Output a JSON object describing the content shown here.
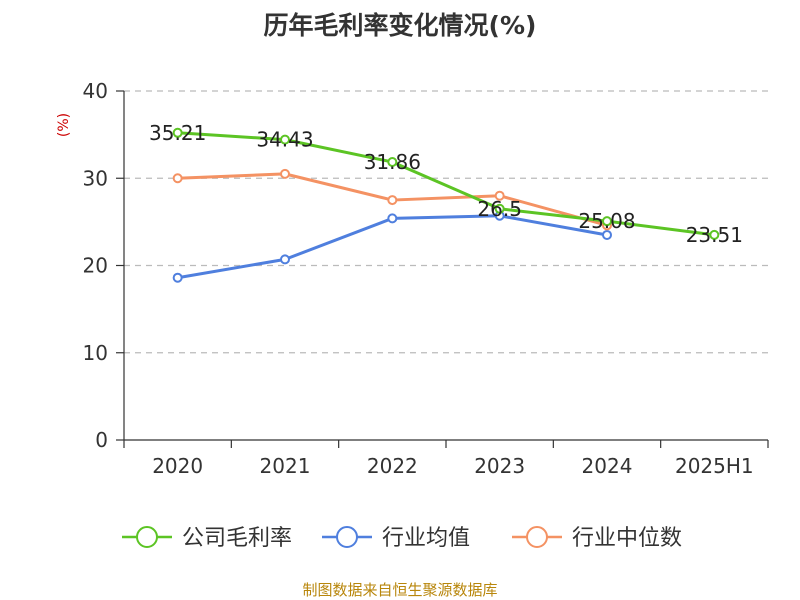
{
  "chart_data": {
    "type": "line",
    "title": "历年毛利率变化情况(%)",
    "ylabel": "(%)",
    "xlabel": "",
    "categories": [
      "2020",
      "2021",
      "2022",
      "2023",
      "2024",
      "2025H1"
    ],
    "ylim": [
      0,
      40
    ],
    "yticks": [
      0,
      10,
      20,
      30,
      40
    ],
    "grid": true,
    "legend_position": "bottom",
    "series": [
      {
        "name": "公司毛利率",
        "color": "#5cc424",
        "values": [
          35.21,
          34.43,
          31.86,
          26.5,
          25.08,
          23.51
        ],
        "labels": [
          "35.21",
          "34.43",
          "31.86",
          "26.5",
          "25.08",
          "23.51"
        ]
      },
      {
        "name": "行业均值",
        "color": "#4f7fde",
        "values": [
          18.6,
          20.7,
          25.4,
          25.7,
          23.5,
          null
        ]
      },
      {
        "name": "行业中位数",
        "color": "#f49263",
        "values": [
          30.0,
          30.5,
          27.5,
          28.0,
          24.6,
          null
        ]
      }
    ]
  },
  "footer": "制图数据来自恒生聚源数据库",
  "colors": {
    "unit_label": "#cc0000",
    "footer": "#b8860b",
    "axis": "#333333",
    "grid": "#bbbbbb"
  }
}
